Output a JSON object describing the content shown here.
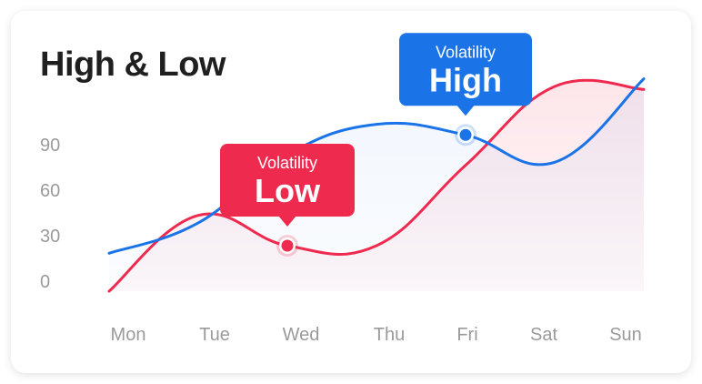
{
  "title": "High & Low",
  "colors": {
    "high": "#1b73e8",
    "low": "#ee2b4f",
    "tick": "#9a9a9a"
  },
  "chart_data": {
    "type": "line",
    "title": "High & Low",
    "categories": [
      "Mon",
      "Tue",
      "Wed",
      "Thu",
      "Fri",
      "Sat",
      "Sun"
    ],
    "yticks": [
      "0",
      "30",
      "60",
      "90"
    ],
    "ylim": [
      -10,
      130
    ],
    "grid": false,
    "series": [
      {
        "key": "high",
        "values": [
          15,
          35,
          80,
          100,
          93,
          75,
          130
        ]
      },
      {
        "key": "low",
        "values": [
          -10,
          40,
          20,
          20,
          73,
          125,
          123
        ]
      }
    ],
    "annotations": [
      {
        "series": "high",
        "x": "Fri",
        "y": 93,
        "label": "Volatility",
        "value": "High"
      },
      {
        "series": "low",
        "x": "Wed",
        "y": 20,
        "label": "Volatility",
        "value": "Low"
      }
    ]
  }
}
